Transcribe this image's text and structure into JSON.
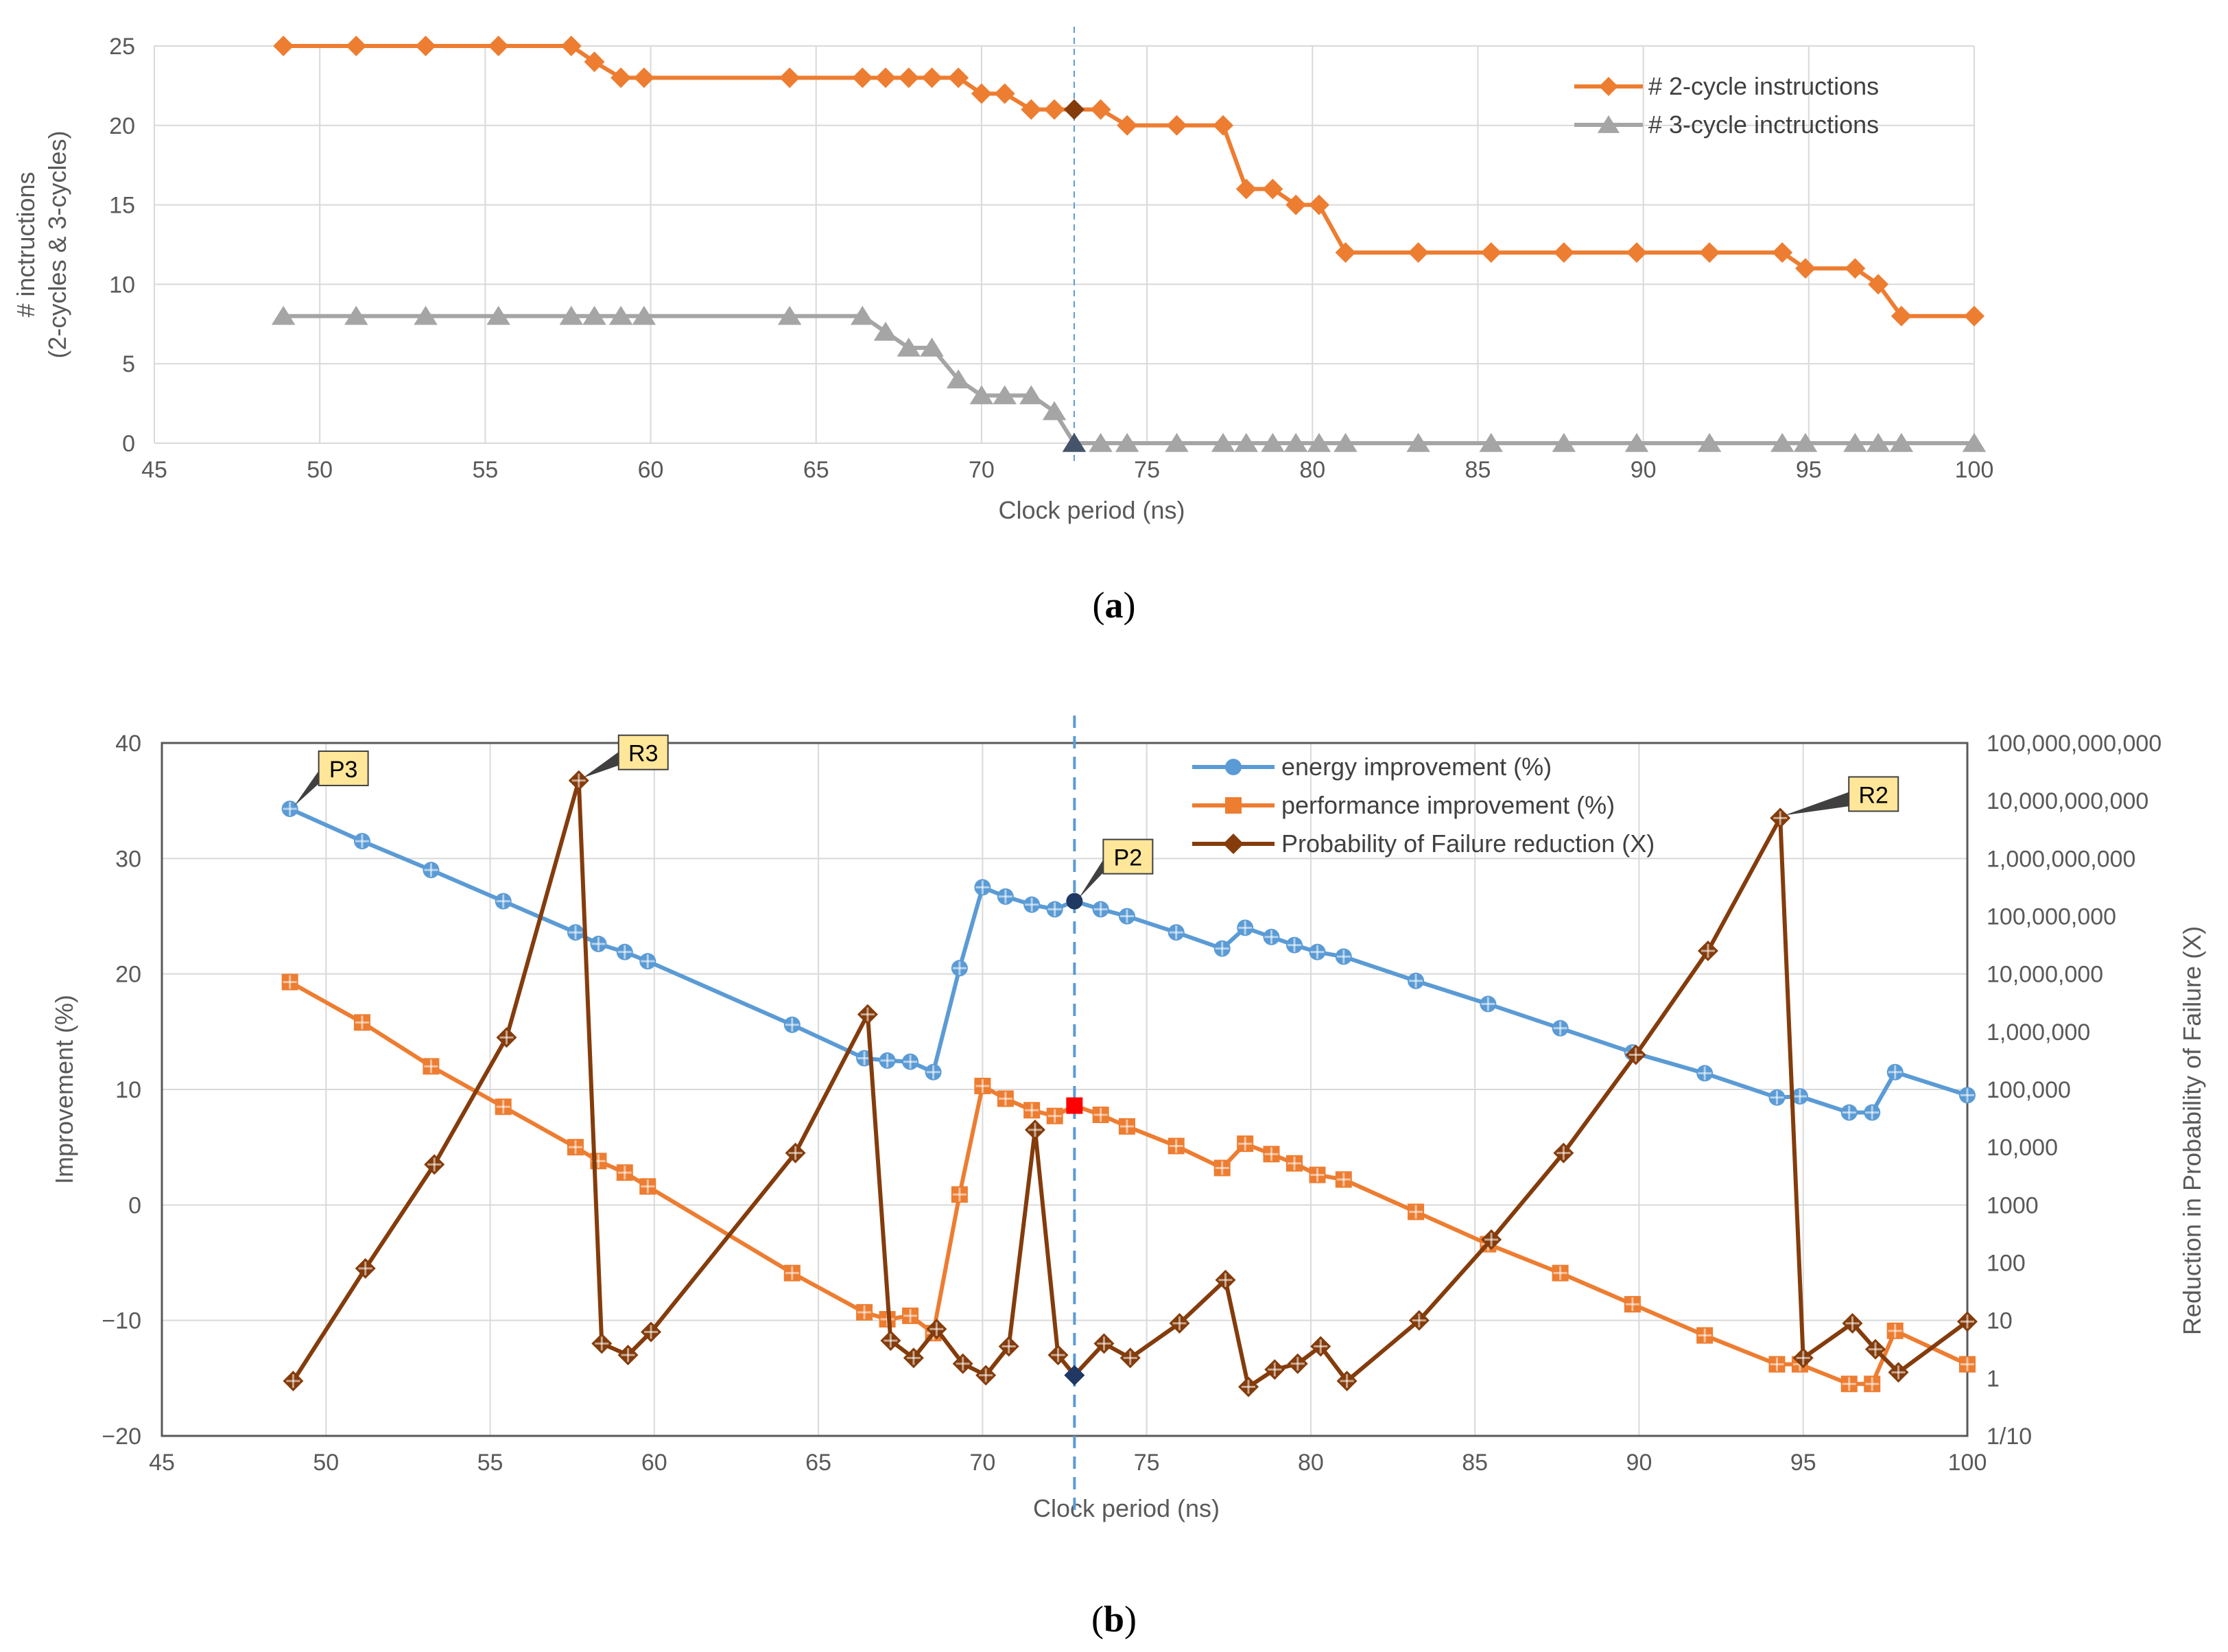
{
  "colors": {
    "orange": "#ED7D31",
    "gray": "#A5A5A5",
    "blue": "#5B9BD5",
    "brown": "#843C0C",
    "grid": "#D9D9D9",
    "marker_dark": "#44546A",
    "marker_brown": "#843C0C",
    "marker_red": "#FF0000",
    "marker_navy": "#1F3864",
    "callout_fill": "#FFE699",
    "dashed": "#5B9BD5"
  },
  "chart_data": [
    {
      "id": "a",
      "panel_label": "(a)",
      "panel_prefix": "(",
      "panel_letter": "a",
      "panel_suffix": ")",
      "type": "line",
      "xlabel": "Clock period (ns)",
      "ylabel_line1": "# inctructions",
      "ylabel_line2": "(2-cycles & 3-cycles)",
      "xlim": [
        45,
        100
      ],
      "ylim": [
        0,
        25
      ],
      "xticks": [
        45,
        50,
        55,
        60,
        65,
        70,
        75,
        80,
        85,
        90,
        95,
        100
      ],
      "yticks": [
        0,
        5,
        10,
        15,
        20,
        25
      ],
      "highlight_x": 72.8,
      "legend_position": "top-right",
      "series": [
        {
          "name": "# 2-cycle instructions",
          "color": "#ED7D31",
          "marker": "diamond",
          "x": [
            48.9,
            51.1,
            53.2,
            55.4,
            57.6,
            58.3,
            59.1,
            59.8,
            64.2,
            66.4,
            67.1,
            67.8,
            68.5,
            69.3,
            70.0,
            70.7,
            71.5,
            72.2,
            72.8,
            73.6,
            74.4,
            75.9,
            77.3,
            78.0,
            78.8,
            79.5,
            80.2,
            81.0,
            83.2,
            85.4,
            87.6,
            89.8,
            92.0,
            94.2,
            94.9,
            96.4,
            97.1,
            97.8,
            100.0
          ],
          "y": [
            25,
            25,
            25,
            25,
            25,
            24,
            23,
            23,
            23,
            23,
            23,
            23,
            23,
            23,
            22,
            22,
            21,
            21,
            21,
            21,
            20,
            20,
            20,
            16,
            16,
            15,
            15,
            12,
            12,
            12,
            12,
            12,
            12,
            12,
            11,
            11,
            10,
            8,
            8
          ],
          "highlight_index": 18
        },
        {
          "name": "# 3-cycle inctructions",
          "color": "#A5A5A5",
          "marker": "triangle",
          "x": [
            48.9,
            51.1,
            53.2,
            55.4,
            57.6,
            58.3,
            59.1,
            59.8,
            64.2,
            66.4,
            67.1,
            67.8,
            68.5,
            69.3,
            70.0,
            70.7,
            71.5,
            72.2,
            72.8,
            73.6,
            74.4,
            75.9,
            77.3,
            78.0,
            78.8,
            79.5,
            80.2,
            81.0,
            83.2,
            85.4,
            87.6,
            89.8,
            92.0,
            94.2,
            94.9,
            96.4,
            97.1,
            97.8,
            100.0
          ],
          "y": [
            8,
            8,
            8,
            8,
            8,
            8,
            8,
            8,
            8,
            8,
            7,
            6,
            6,
            4,
            3,
            3,
            3,
            2,
            0,
            0,
            0,
            0,
            0,
            0,
            0,
            0,
            0,
            0,
            0,
            0,
            0,
            0,
            0,
            0,
            0,
            0,
            0,
            0,
            0
          ],
          "highlight_index": 18
        }
      ]
    },
    {
      "id": "b",
      "panel_label": "(b)",
      "panel_prefix": "(",
      "panel_letter": "b",
      "panel_suffix": ")",
      "type": "line",
      "xlabel": "Clock period (ns)",
      "ylabel": "Improvement (%)",
      "ylabel_right": "Reduction in Probability of Failure (X)",
      "xlim": [
        45,
        100
      ],
      "ylim": [
        -20,
        40
      ],
      "xticks": [
        45,
        50,
        55,
        60,
        65,
        70,
        75,
        80,
        85,
        90,
        95,
        100
      ],
      "yticks": [
        -20,
        -10,
        0,
        10,
        20,
        30,
        40
      ],
      "yticks_labels": [
        "−20",
        "−10",
        "0",
        "10",
        "20",
        "30",
        "40"
      ],
      "y2_scale": "log10",
      "y2lim_log10": [
        -1,
        11
      ],
      "y2ticks_log10": [
        -1,
        0,
        1,
        2,
        3,
        4,
        5,
        6,
        7,
        8,
        9,
        10,
        11
      ],
      "y2ticks_labels": [
        "1/10",
        "1",
        "10",
        "100",
        "1000",
        "10,000",
        "100,000",
        "1,000,000",
        "10,000,000",
        "100,000,000",
        "1,000,000,000",
        "10,000,000,000",
        "100,000,000,000"
      ],
      "highlight_x": 72.8,
      "legend_position": "top-right",
      "series": [
        {
          "name": "energy improvement (%)",
          "color": "#5B9BD5",
          "marker": "circle",
          "axis": "left",
          "x": [
            48.9,
            51.1,
            53.2,
            55.4,
            57.6,
            58.3,
            59.1,
            59.8,
            64.2,
            66.4,
            67.1,
            67.8,
            68.5,
            69.3,
            70.0,
            70.7,
            71.5,
            72.2,
            72.8,
            73.6,
            74.4,
            75.9,
            77.3,
            78.0,
            78.8,
            79.5,
            80.2,
            81.0,
            83.2,
            85.4,
            87.6,
            89.8,
            92.0,
            94.2,
            94.9,
            96.4,
            97.1,
            97.8,
            100.0
          ],
          "y": [
            34.3,
            31.5,
            29.0,
            26.3,
            23.6,
            22.6,
            21.9,
            21.1,
            15.6,
            12.7,
            12.5,
            12.4,
            11.5,
            20.5,
            27.5,
            26.7,
            26.0,
            25.6,
            26.3,
            25.6,
            25.0,
            23.6,
            22.2,
            24.0,
            23.2,
            22.5,
            21.9,
            21.5,
            19.4,
            17.4,
            15.3,
            13.2,
            11.4,
            9.3,
            9.4,
            8.0,
            8.0,
            11.5,
            9.5
          ],
          "highlight_index": 18
        },
        {
          "name": "performance improvement (%)",
          "color": "#ED7D31",
          "marker": "square",
          "axis": "left",
          "x": [
            48.9,
            51.1,
            53.2,
            55.4,
            57.6,
            58.3,
            59.1,
            59.8,
            64.2,
            66.4,
            67.1,
            67.8,
            68.5,
            69.3,
            70.0,
            70.7,
            71.5,
            72.2,
            72.8,
            73.6,
            74.4,
            75.9,
            77.3,
            78.0,
            78.8,
            79.5,
            80.2,
            81.0,
            83.2,
            85.4,
            87.6,
            89.8,
            92.0,
            94.2,
            94.9,
            96.4,
            97.1,
            97.8,
            100.0
          ],
          "y": [
            19.3,
            15.8,
            12.0,
            8.5,
            5.0,
            3.8,
            2.8,
            1.6,
            -5.9,
            -9.3,
            -9.9,
            -9.6,
            -11.1,
            0.9,
            10.3,
            9.2,
            8.2,
            7.7,
            8.6,
            7.8,
            6.8,
            5.1,
            3.2,
            5.3,
            4.4,
            3.6,
            2.6,
            2.2,
            -0.6,
            -3.4,
            -5.9,
            -8.6,
            -11.3,
            -13.8,
            -13.8,
            -15.5,
            -15.5,
            -10.9,
            -13.8
          ],
          "highlight_index": 18
        },
        {
          "name": "Probability of Failure reduction (X)",
          "color": "#843C0C",
          "marker": "diamond",
          "axis": "right",
          "x": [
            49.0,
            51.2,
            53.3,
            55.5,
            57.7,
            58.4,
            59.2,
            59.9,
            64.3,
            66.5,
            67.2,
            67.9,
            68.6,
            69.4,
            70.1,
            70.8,
            71.6,
            72.3,
            72.8,
            73.7,
            74.5,
            76.0,
            77.4,
            78.1,
            78.9,
            79.6,
            80.3,
            81.1,
            83.3,
            85.5,
            87.7,
            89.9,
            92.1,
            94.3,
            95.0,
            96.5,
            97.2,
            97.9,
            100.0
          ],
          "y_log10": [
            -0.05,
            1.9,
            3.7,
            5.9,
            10.35,
            0.6,
            0.4,
            0.8,
            3.9,
            6.3,
            0.65,
            0.35,
            0.85,
            0.25,
            0.05,
            0.55,
            4.3,
            0.4,
            0.05,
            0.6,
            0.35,
            0.95,
            1.7,
            -0.15,
            0.15,
            0.25,
            0.55,
            -0.05,
            1.0,
            2.4,
            3.9,
            5.6,
            7.4,
            9.7,
            0.35,
            0.95,
            0.5,
            0.1,
            0.98
          ],
          "highlight_index": 18
        }
      ],
      "callouts": [
        {
          "label": "P3",
          "series": "energy improvement (%)",
          "x": 48.9
        },
        {
          "label": "R3",
          "series": "Probability of Failure reduction (X)",
          "x": 57.7
        },
        {
          "label": "P2",
          "series": "energy improvement (%)",
          "x": 72.8
        },
        {
          "label": "R2",
          "series": "Probability of Failure reduction (X)",
          "x": 94.3
        }
      ]
    }
  ]
}
